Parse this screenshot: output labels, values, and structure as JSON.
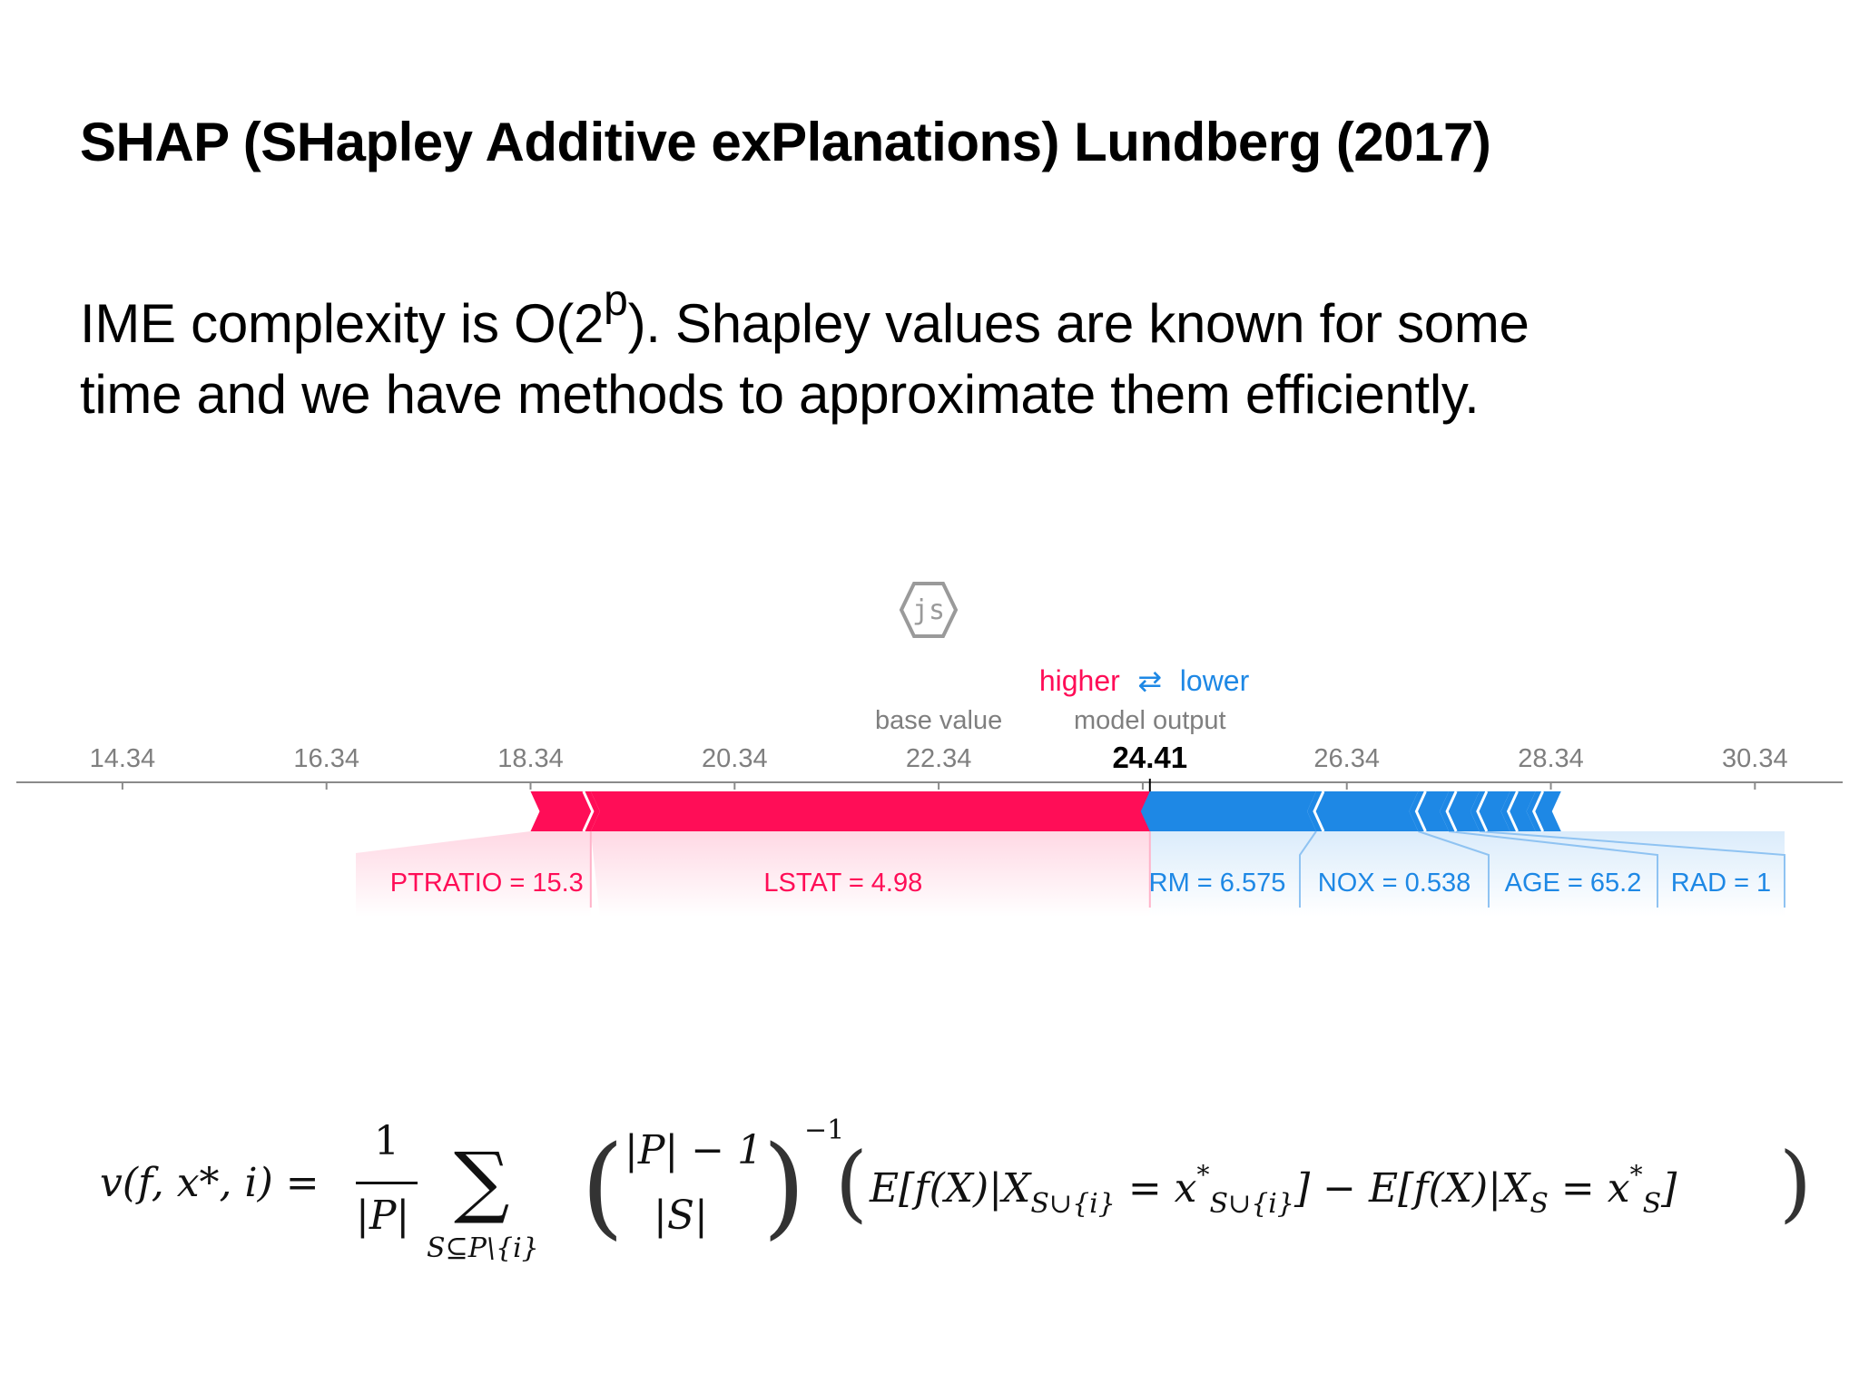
{
  "slide": {
    "title": "SHAP (SHapley Additive exPlanations) Lundberg (2017)",
    "text_before_sup": "IME complexity is O(2",
    "text_sup": "p",
    "text_after_sup": "). Shapley values are known for some",
    "text_line2": "time and we have methods to approximate them efficiently."
  },
  "logo": {
    "label": "js",
    "icon": "js-hexagon-icon"
  },
  "chart_data": {
    "type": "force-plot",
    "ticks": [
      "14.34",
      "16.34",
      "18.34",
      "20.34",
      "22.34",
      "24.34",
      "26.34",
      "28.34",
      "30.34"
    ],
    "xlim": [
      13.3,
      31.2
    ],
    "base_value": 22.34,
    "model_output": 24.41,
    "output_label": "24.41",
    "labels": {
      "higher": "higher",
      "arrows": "⇄",
      "lower": "lower",
      "base_value": "base value",
      "model_output": "model output"
    },
    "colors": {
      "positive": "#ff0d57",
      "negative": "#1e88e5"
    },
    "positive_features": [
      {
        "name": "LSTAT = 4.98",
        "start": 24.41,
        "end": 18.93
      },
      {
        "name": "PTRATIO = 15.3",
        "start": 18.93,
        "end": 18.34
      }
    ],
    "negative_features": [
      {
        "name": "RM = 6.575",
        "start": 24.41,
        "end": 26.04
      },
      {
        "name": "NOX = 0.538",
        "start": 26.04,
        "end": 27.04
      },
      {
        "name": "AGE = 65.2",
        "start": 27.04,
        "end": 27.34
      },
      {
        "name": "RAD = 1",
        "start": 27.34,
        "end": 27.64
      },
      {
        "name": "",
        "start": 27.64,
        "end": 27.94
      },
      {
        "name": "",
        "start": 27.94,
        "end": 28.19
      },
      {
        "name": "",
        "start": 28.19,
        "end": 28.44
      }
    ]
  },
  "formula": {
    "lhs": "v(f, x*, i) =",
    "frac_num": "1",
    "frac_den": "|P|",
    "sigma": "∑",
    "sigma_sub": "S⊆P\\{i}",
    "binom_top": "|P| − 1",
    "binom_bottom": "|S|",
    "binom_exp": "−1",
    "rhs_a": "E[f(X)|X",
    "rhs_a_sub": "S∪{i}",
    "rhs_b": " = x",
    "rhs_b_sup": "*",
    "rhs_b_sub": "S∪{i}",
    "rhs_c": "] − E[f(X)|X",
    "rhs_c_sub": "S",
    "rhs_d": " = x",
    "rhs_d_sup": "*",
    "rhs_d_sub": "S",
    "rhs_e": "]"
  }
}
